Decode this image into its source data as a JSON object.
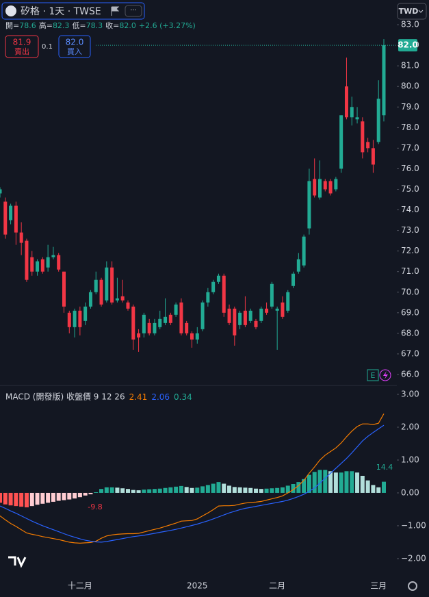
{
  "header": {
    "title": "矽格 · 1天 · TWSE",
    "currency": "TWD",
    "ohlc": [
      {
        "label": "開=",
        "value": "78.6"
      },
      {
        "label": "高=",
        "value": "82.3"
      },
      {
        "label": "低=",
        "value": "78.3"
      },
      {
        "label": "收=",
        "value": "82.0"
      }
    ],
    "change": "+2.6 (+3.27%)",
    "sell": {
      "price": "81.9",
      "label": "賣出"
    },
    "spread": "0.1",
    "buy": {
      "price": "82.0",
      "label": "買入"
    }
  },
  "chart_data": [
    {
      "type": "candlestick",
      "up_color": "#22ab94",
      "down_color": "#f23645",
      "last_price_label": "82.0",
      "categories": [
        null,
        null,
        null,
        null,
        null,
        null,
        null,
        null,
        null,
        null,
        null,
        null,
        null,
        null,
        null,
        "十二月",
        null,
        null,
        null,
        null,
        null,
        null,
        null,
        null,
        null,
        null,
        null,
        null,
        null,
        null,
        null,
        null,
        null,
        null,
        null,
        null,
        null,
        "2025",
        null,
        null,
        null,
        null,
        null,
        null,
        null,
        null,
        null,
        null,
        null,
        null,
        null,
        null,
        "二月",
        null,
        null,
        null,
        null,
        null,
        null,
        null,
        null,
        null,
        null,
        null,
        null,
        null,
        null,
        null,
        null,
        null,
        null,
        "三月",
        null
      ],
      "open": [
        74.8,
        74.4,
        73.5,
        74.2,
        72.9,
        72.5,
        71.7,
        71.0,
        71.6,
        71.2,
        71.7,
        71.8,
        71.0,
        69.0,
        68.3,
        69.1,
        68.6,
        69.3,
        70.0,
        70.6,
        69.6,
        71.2,
        69.6,
        69.8,
        69.5,
        69.3,
        68.0,
        68.0,
        68.5,
        68.0,
        68.3,
        68.5,
        68.9,
        68.9,
        69.5,
        68.5,
        68.0,
        67.7,
        68.2,
        69.5,
        70.0,
        70.5,
        70.8,
        69.2,
        69.2,
        68.4,
        69.1,
        68.6,
        68.6,
        68.6,
        69.2,
        69.3,
        69.1,
        69.5,
        69.1,
        70.3,
        71.0,
        71.3,
        73.1,
        75.5,
        74.6,
        75.4,
        75.4,
        75.0,
        76.0,
        80.0,
        78.5,
        78.4,
        78.3,
        77.3,
        77.0,
        77.3,
        78.6
      ],
      "high": [
        75.1,
        74.6,
        74.3,
        74.4,
        73.4,
        72.6,
        72.0,
        71.6,
        71.7,
        72.3,
        72.2,
        71.9,
        71.0,
        69.1,
        69.2,
        69.3,
        69.5,
        70.1,
        71.0,
        70.7,
        71.5,
        71.5,
        70.7,
        70.6,
        69.6,
        69.4,
        68.2,
        69.0,
        68.7,
        68.7,
        69.1,
        69.7,
        69.0,
        69.5,
        69.7,
        68.6,
        68.1,
        68.3,
        69.6,
        70.2,
        70.6,
        70.9,
        70.9,
        69.4,
        69.3,
        69.1,
        69.8,
        69.2,
        68.7,
        69.3,
        69.5,
        70.5,
        69.3,
        69.8,
        70.1,
        71.0,
        71.9,
        72.8,
        76.0,
        76.5,
        76.4,
        75.5,
        75.5,
        75.6,
        78.6,
        81.4,
        79.5,
        79.0,
        78.5,
        77.5,
        77.4,
        80.3,
        82.3
      ],
      "low": [
        74.6,
        72.6,
        73.3,
        72.3,
        71.8,
        70.5,
        70.8,
        70.8,
        70.9,
        71.0,
        71.6,
        71.0,
        69.0,
        68.0,
        67.8,
        67.9,
        68.4,
        69.2,
        69.9,
        69.3,
        69.5,
        69.4,
        69.5,
        69.5,
        69.1,
        67.2,
        67.1,
        67.8,
        67.9,
        67.9,
        68.2,
        68.4,
        68.4,
        68.8,
        67.9,
        67.9,
        67.3,
        67.5,
        68.1,
        69.3,
        69.9,
        70.4,
        68.8,
        68.4,
        67.4,
        68.2,
        68.3,
        68.5,
        68.2,
        68.5,
        68.9,
        69.2,
        67.2,
        68.7,
        69.0,
        70.2,
        70.9,
        71.2,
        72.8,
        74.6,
        74.5,
        74.9,
        74.7,
        74.9,
        75.8,
        78.4,
        78.1,
        78.2,
        76.5,
        76.8,
        75.8,
        77.2,
        78.3
      ],
      "close": [
        75.0,
        72.8,
        74.2,
        72.9,
        72.4,
        70.6,
        71.0,
        71.5,
        71.0,
        71.7,
        71.8,
        71.1,
        69.3,
        68.3,
        69.1,
        68.3,
        69.3,
        70.0,
        70.6,
        69.4,
        71.2,
        69.5,
        69.7,
        69.6,
        69.2,
        67.7,
        67.8,
        68.9,
        68.0,
        68.5,
        68.7,
        68.8,
        68.5,
        69.4,
        68.0,
        68.0,
        67.7,
        68.0,
        69.5,
        70.0,
        70.5,
        70.8,
        69.0,
        68.5,
        67.9,
        69.0,
        68.4,
        69.1,
        68.3,
        69.2,
        69.0,
        70.4,
        69.2,
        68.8,
        70.0,
        70.9,
        71.6,
        72.7,
        75.4,
        74.7,
        75.5,
        75.0,
        74.8,
        75.5,
        78.6,
        78.5,
        79.0,
        78.5,
        76.8,
        77.0,
        76.2,
        79.4,
        82.0
      ],
      "ylim": [
        65.5,
        84.2
      ],
      "yticks": [
        {
          "value": 83,
          "label": "83.0"
        },
        {
          "value": 82,
          "label": "82.0"
        },
        {
          "value": 81,
          "label": "81.0"
        },
        {
          "value": 80,
          "label": "80.0"
        },
        {
          "value": 79,
          "label": "79.0"
        },
        {
          "value": 78,
          "label": "78.0"
        },
        {
          "value": 77,
          "label": "77.0"
        },
        {
          "value": 76,
          "label": "76.0"
        },
        {
          "value": 75,
          "label": "75.0"
        },
        {
          "value": 74,
          "label": "74.0"
        },
        {
          "value": 73,
          "label": "73.0"
        },
        {
          "value": 72,
          "label": "72.0"
        },
        {
          "value": 71,
          "label": "71.0"
        },
        {
          "value": 70,
          "label": "70.0"
        },
        {
          "value": 69,
          "label": "69.0"
        },
        {
          "value": 68,
          "label": "68.0"
        },
        {
          "value": 67,
          "label": "67.0"
        },
        {
          "value": 66,
          "label": "66.0"
        }
      ]
    },
    {
      "type": "macd",
      "title": "MACD (開發版) 收盤價 9 12 26",
      "series": [
        {
          "name": "2.41",
          "color": "#f57c00",
          "values": [
            -0.7,
            -0.82,
            -0.93,
            -1.02,
            -1.12,
            -1.22,
            -1.26,
            -1.29,
            -1.33,
            -1.36,
            -1.39,
            -1.42,
            -1.46,
            -1.5,
            -1.52,
            -1.53,
            -1.52,
            -1.51,
            -1.47,
            -1.38,
            -1.31,
            -1.28,
            -1.26,
            -1.25,
            -1.24,
            -1.24,
            -1.23,
            -1.19,
            -1.15,
            -1.11,
            -1.07,
            -1.02,
            -0.97,
            -0.92,
            -0.86,
            -0.85,
            -0.84,
            -0.79,
            -0.7,
            -0.61,
            -0.51,
            -0.4,
            -0.39,
            -0.39,
            -0.38,
            -0.34,
            -0.31,
            -0.29,
            -0.28,
            -0.26,
            -0.22,
            -0.18,
            -0.14,
            -0.09,
            0.0,
            0.1,
            0.22,
            0.38,
            0.6,
            0.79,
            1.0,
            1.15,
            1.26,
            1.37,
            1.52,
            1.71,
            1.88,
            2.02,
            2.1,
            2.1,
            2.08,
            2.12,
            2.41
          ]
        },
        {
          "name": "2.06",
          "color": "#2962ff",
          "values": [
            -0.4,
            -0.47,
            -0.55,
            -0.62,
            -0.7,
            -0.78,
            -0.86,
            -0.93,
            -1.0,
            -1.06,
            -1.12,
            -1.18,
            -1.24,
            -1.3,
            -1.35,
            -1.4,
            -1.44,
            -1.47,
            -1.49,
            -1.5,
            -1.48,
            -1.45,
            -1.42,
            -1.39,
            -1.36,
            -1.33,
            -1.31,
            -1.29,
            -1.26,
            -1.23,
            -1.2,
            -1.17,
            -1.14,
            -1.11,
            -1.07,
            -1.03,
            -0.99,
            -0.95,
            -0.9,
            -0.85,
            -0.79,
            -0.73,
            -0.67,
            -0.61,
            -0.56,
            -0.51,
            -0.47,
            -0.44,
            -0.41,
            -0.38,
            -0.35,
            -0.32,
            -0.29,
            -0.26,
            -0.22,
            -0.17,
            -0.11,
            -0.04,
            0.05,
            0.15,
            0.3,
            0.45,
            0.6,
            0.75,
            0.9,
            1.05,
            1.22,
            1.4,
            1.58,
            1.72,
            1.84,
            1.95,
            2.06
          ]
        },
        {
          "name": "0.34",
          "color": "#22ab94",
          "values": [
            -0.3,
            -0.35,
            -0.38,
            -0.4,
            -0.42,
            -0.44,
            -0.4,
            -0.36,
            -0.33,
            -0.3,
            -0.27,
            -0.24,
            -0.22,
            -0.2,
            -0.17,
            -0.13,
            -0.08,
            -0.04,
            0.02,
            0.12,
            0.17,
            0.17,
            0.16,
            0.14,
            0.12,
            0.09,
            0.08,
            0.1,
            0.11,
            0.12,
            0.13,
            0.15,
            0.17,
            0.19,
            0.21,
            0.18,
            0.15,
            0.16,
            0.2,
            0.24,
            0.28,
            0.33,
            0.28,
            0.22,
            0.18,
            0.17,
            0.16,
            0.15,
            0.13,
            0.12,
            0.13,
            0.14,
            0.15,
            0.17,
            0.22,
            0.27,
            0.33,
            0.42,
            0.55,
            0.64,
            0.7,
            0.7,
            0.66,
            0.62,
            0.62,
            0.66,
            0.66,
            0.62,
            0.52,
            0.38,
            0.24,
            0.17,
            0.34
          ]
        }
      ],
      "hist_colors": {
        "pos_grow": "#22ab94",
        "pos_shrink": "#b2dfdb",
        "neg_grow": "#ff5252",
        "neg_shrink": "#ffcdd2"
      },
      "annotations": [
        "14.4",
        "-9.8"
      ],
      "ylim": [
        -2.46,
        3.25
      ],
      "yticks": [
        {
          "value": 3,
          "label": "3.00"
        },
        {
          "value": 2,
          "label": "2.00"
        },
        {
          "value": 1,
          "label": "1.00"
        },
        {
          "value": 0,
          "label": "0.00"
        },
        {
          "value": -1,
          "label": "−1.00"
        },
        {
          "value": -2,
          "label": "−2.00"
        }
      ]
    }
  ]
}
